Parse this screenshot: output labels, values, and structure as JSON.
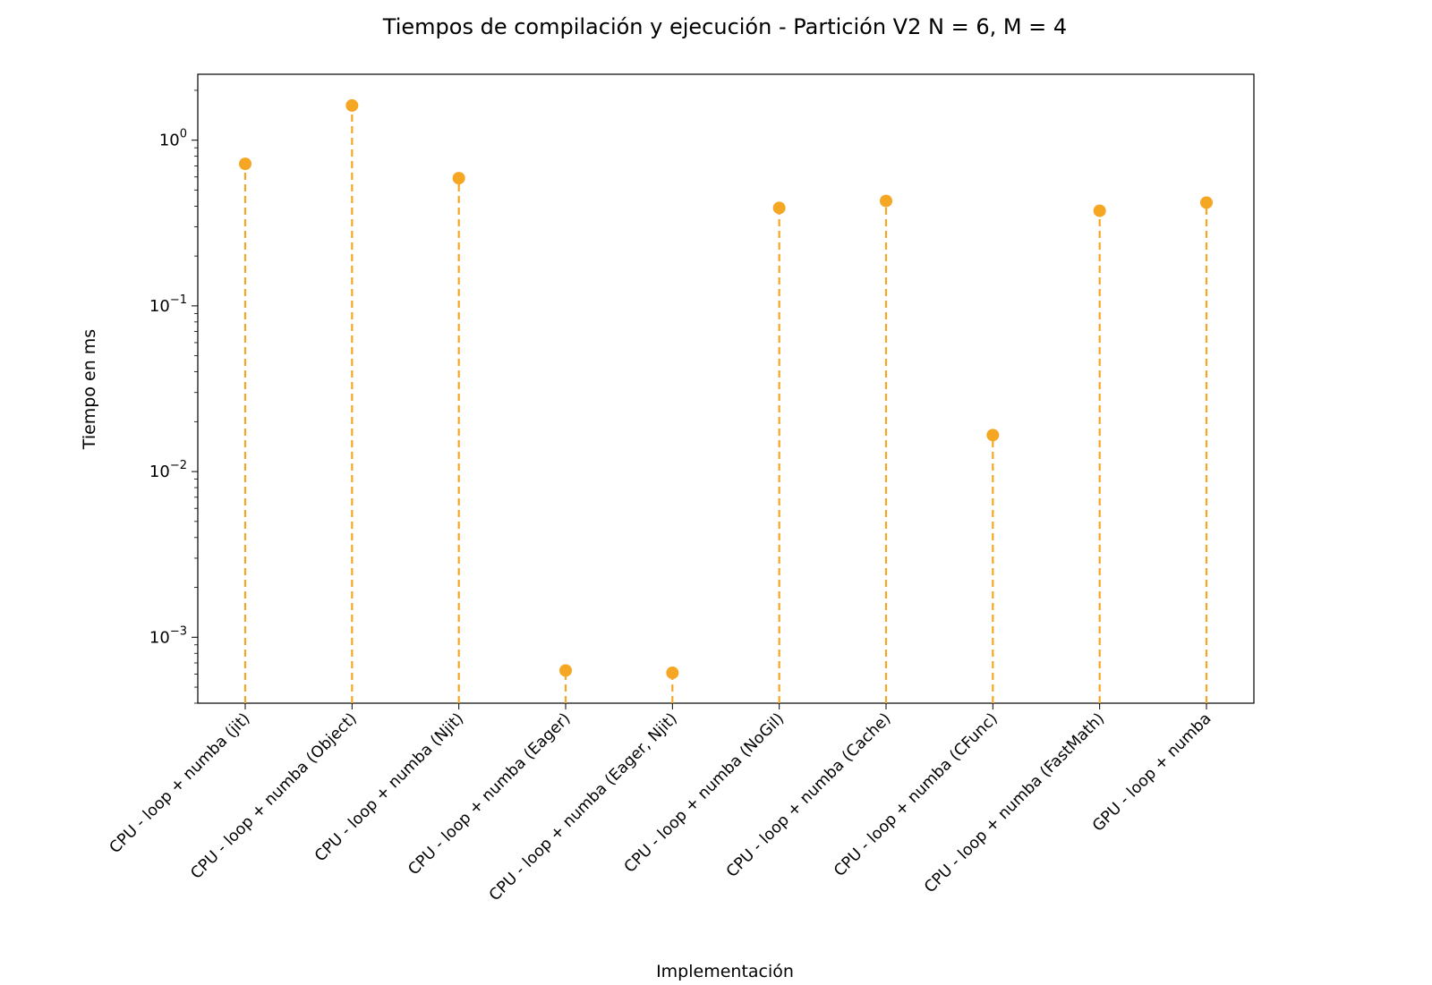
{
  "chart_data": {
    "type": "stem",
    "title": "Tiempos de compilación y ejecución - Partición V2 N = 6, M = 4",
    "xlabel": "Implementación",
    "ylabel": "Tiempo en ms",
    "yscale": "log",
    "ylim": [
      0.0004,
      2.5
    ],
    "yticks": [
      {
        "value": 1,
        "base": "10",
        "exp": "0"
      },
      {
        "value": 0.1,
        "base": "10",
        "exp": "−1"
      },
      {
        "value": 0.01,
        "base": "10",
        "exp": "−2"
      },
      {
        "value": 0.001,
        "base": "10",
        "exp": "−3"
      }
    ],
    "categories": [
      "CPU - loop + numba (jit)",
      "CPU - loop + numba (Object)",
      "CPU - loop + numba (Njit)",
      "CPU - loop + numba (Eager)",
      "CPU - loop + numba (Eager, Njit)",
      "CPU - loop + numba (NoGil)",
      "CPU - loop + numba (Cache)",
      "CPU - loop + numba (CFunc)",
      "CPU - loop + numba (FastMath)",
      "GPU - loop + numba"
    ],
    "values": [
      0.72,
      1.62,
      0.59,
      0.00063,
      0.00061,
      0.39,
      0.43,
      0.0166,
      0.375,
      0.42
    ],
    "color": "#f5a623",
    "line_style": "dashed",
    "grid": false,
    "legend": "none"
  }
}
